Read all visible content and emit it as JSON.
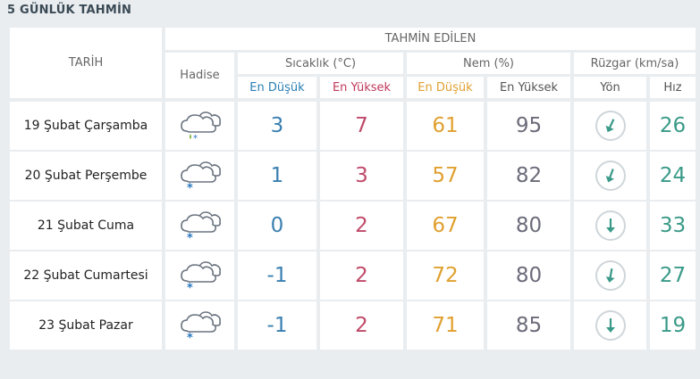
{
  "page_title": "5 GÜNLÜK TAHMİN",
  "header": {
    "date_col": "TARİH",
    "predicted": "TAHMİN EDİLEN",
    "event": "Hadise",
    "temperature": "Sıcaklık (°C)",
    "humidity": "Nem (%)",
    "wind": "Rüzgar (km/sa)",
    "temp_min": "En Düşük",
    "temp_max": "En Yüksek",
    "hum_min": "En Düşük",
    "hum_max": "En Yüksek",
    "wind_dir": "Yön",
    "wind_speed": "Hız"
  },
  "rows": [
    {
      "date": "19 Şubat Çarşamba",
      "icon": "sleet-icon",
      "tmin": "3",
      "tmax": "7",
      "hmin": "61",
      "hmax": "95",
      "speed": "26"
    },
    {
      "date": "20 Şubat Perşembe",
      "icon": "snow-icon",
      "tmin": "1",
      "tmax": "3",
      "hmin": "57",
      "hmax": "82",
      "speed": "24"
    },
    {
      "date": "21 Şubat Cuma",
      "icon": "snow-icon",
      "tmin": "0",
      "tmax": "2",
      "hmin": "67",
      "hmax": "80",
      "speed": "33"
    },
    {
      "date": "22 Şubat Cumartesi",
      "icon": "snow-icon",
      "tmin": "-1",
      "tmax": "2",
      "hmin": "72",
      "hmax": "80",
      "speed": "27"
    },
    {
      "date": "23 Şubat Pazar",
      "icon": "snow-icon",
      "tmin": "-1",
      "tmax": "2",
      "hmin": "71",
      "hmax": "85",
      "speed": "19"
    }
  ],
  "colors": {
    "min_temp": "#3a7fb0",
    "max_temp": "#c04a6a",
    "min_hum": "#e0a030",
    "max_hum": "#6b6b7a",
    "wind": "#3a9a88"
  }
}
